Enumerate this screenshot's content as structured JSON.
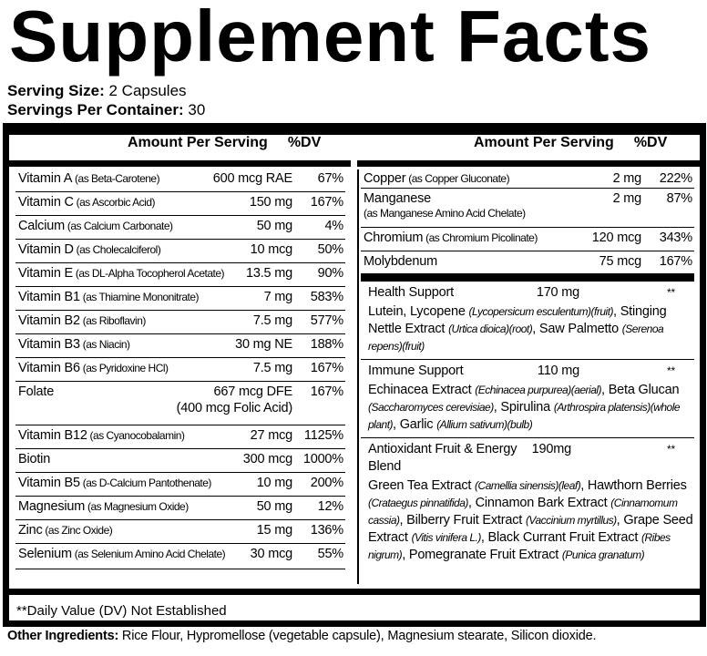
{
  "title": "Supplement Facts",
  "serving_size": {
    "label": "Serving Size:",
    "value": " 2 Capsules"
  },
  "servings_per_container": {
    "label": "Servings Per Container:",
    "value": " 30"
  },
  "header": {
    "amount": "Amount Per Serving",
    "dv": "%DV"
  },
  "left_rows": [
    {
      "name": "Vitamin A",
      "sub": " (as Beta-Carotene)",
      "amount": "600 mcg RAE",
      "dv": "67%"
    },
    {
      "name": "Vitamin C",
      "sub": " (as Ascorbic Acid)",
      "amount": "150 mg",
      "dv": "167%"
    },
    {
      "name": "Calcium",
      "sub": " (as Calcium Carbonate)",
      "amount": "50 mg",
      "dv": "4%"
    },
    {
      "name": "Vitamin D",
      "sub": " (as Cholecalciferol)",
      "amount": "10 mcg",
      "dv": "50%"
    },
    {
      "name": "Vitamin E",
      "sub": " (as DL-Alpha Tocopherol Acetate)",
      "amount": "13.5 mg",
      "dv": "90%"
    },
    {
      "name": "Vitamin B1",
      "sub": " (as Thiamine Mononitrate)",
      "amount": "7 mg",
      "dv": "583%"
    },
    {
      "name": "Vitamin B2",
      "sub": " (as Riboflavin)",
      "amount": "7.5 mg",
      "dv": "577%"
    },
    {
      "name": "Vitamin B3",
      "sub": " (as Niacin)",
      "amount": "30 mg NE",
      "dv": "188%"
    },
    {
      "name": "Vitamin B6",
      "sub": " (as Pyridoxine HCl)",
      "amount": "7.5 mg",
      "dv": "167%"
    },
    {
      "name": "Folate",
      "sub": "",
      "amount": "667 mcg DFE",
      "amount2": "(400 mcg Folic Acid)",
      "dv": "167%"
    },
    {
      "name": "Vitamin B12",
      "sub": " (as Cyanocobalamin)",
      "amount": "27 mcg",
      "dv": "1125%"
    },
    {
      "name": "Biotin",
      "sub": "",
      "amount": "300 mcg",
      "dv": "1000%"
    },
    {
      "name": "Vitamin B5",
      "sub": " (as D-Calcium Pantothenate)",
      "amount": "10 mg",
      "dv": "200%"
    },
    {
      "name": "Magnesium",
      "sub": " (as Magnesium Oxide)",
      "amount": "50 mg",
      "dv": "12%"
    },
    {
      "name": "Zinc",
      "sub": " (as Zinc Oxide)",
      "amount": "15 mg",
      "dv": "136%"
    },
    {
      "name": "Selenium",
      "sub": " (as Selenium Amino Acid Chelate)",
      "amount": "30 mcg",
      "dv": "55%"
    }
  ],
  "right_rows": [
    {
      "name": "Copper",
      "sub": " (as Copper Gluconate)",
      "amount": "2 mg",
      "dv": "222%"
    },
    {
      "name": "Manganese",
      "sub2": "(as Manganese Amino Acid Chelate)",
      "amount": "2 mg",
      "dv": "87%"
    },
    {
      "name": "Chromium",
      "sub": " (as Chromium Picolinate)",
      "amount": "120 mcg",
      "dv": "343%"
    },
    {
      "name": "Molybdenum",
      "sub": "",
      "amount": "75 mcg",
      "dv": "167%"
    }
  ],
  "blends": [
    {
      "name": "Health Support",
      "amount": "170 mg",
      "dv": "**",
      "parts": [
        [
          "Lutein, Lycopene ",
          ""
        ],
        [
          "",
          "(Lycopersicum esculentum)(fruit)"
        ],
        [
          ", Stinging Nettle Extract ",
          ""
        ],
        [
          "",
          "(Urtica dioica)(root)"
        ],
        [
          ", Saw Palmetto ",
          ""
        ],
        [
          "",
          "(Serenoa repens)(fruit)"
        ]
      ]
    },
    {
      "name": "Immune Support",
      "amount": "110 mg",
      "dv": "**",
      "parts": [
        [
          "Echinacea Extract ",
          ""
        ],
        [
          "",
          "(Echinacea purpurea)(aerial)"
        ],
        [
          ", Beta Glucan ",
          ""
        ],
        [
          "",
          "(Saccharomyces cerevisiae)"
        ],
        [
          ", Spirulina ",
          ""
        ],
        [
          "",
          "(Arthrospira platensis)(whole plant)"
        ],
        [
          ", Garlic ",
          ""
        ],
        [
          "",
          "(Allium sativum)(bulb)"
        ]
      ]
    },
    {
      "name": "Antioxidant Fruit & Energy Blend",
      "amount": "190mg",
      "dv": "**",
      "parts": [
        [
          "Green Tea Extract ",
          ""
        ],
        [
          "",
          "(Camellia sinensis)(leaf)"
        ],
        [
          ", Hawthorn Berries ",
          ""
        ],
        [
          "",
          "(Crataegus pinnatifida)"
        ],
        [
          ", Cinnamon Bark Extract ",
          ""
        ],
        [
          "",
          "(Cinnamomum cassia)"
        ],
        [
          ", Bilberry Fruit Extract ",
          ""
        ],
        [
          "",
          "(Vaccinium myrtillus)"
        ],
        [
          ", Grape Seed Extract ",
          ""
        ],
        [
          "",
          "(Vitis vinifera L.)"
        ],
        [
          ", Black Currant Fruit Extract ",
          ""
        ],
        [
          "",
          "(Ribes nigrum)"
        ],
        [
          ", Pomegranate Fruit Extract ",
          ""
        ],
        [
          "",
          "(Punica granatum)"
        ]
      ]
    }
  ],
  "footnote": "**Daily Value (DV) Not Established",
  "other_ingredients": {
    "label": "Other Ingredients:",
    "value": " Rice Flour, Hypromellose (vegetable capsule), Magnesium stearate, Silicon dioxide."
  }
}
